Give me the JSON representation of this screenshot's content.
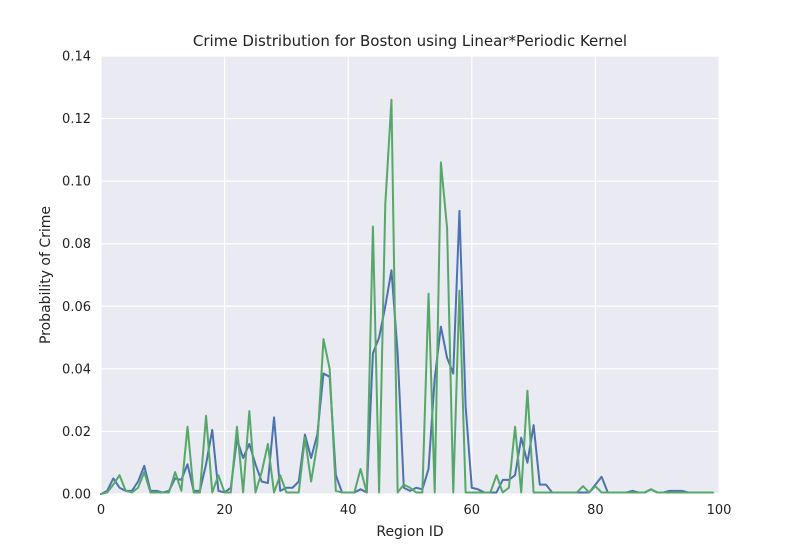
{
  "colors": {
    "plot_background": "#eaeaf2",
    "grid": "#ffffff",
    "series": [
      "#4c72b0",
      "#55a868"
    ]
  },
  "chart_data": {
    "type": "line",
    "title": "Crime Distribution for Boston using Linear*Periodic Kernel",
    "xlabel": "Region ID",
    "ylabel": "Probability of Crime",
    "xlim": [
      0,
      100
    ],
    "ylim": [
      0,
      0.14
    ],
    "xticks": [
      "0",
      "20",
      "40",
      "60",
      "80",
      "100"
    ],
    "yticks": [
      "0.00",
      "0.02",
      "0.04",
      "0.06",
      "0.08",
      "0.10",
      "0.12",
      "0.14"
    ],
    "grid": true,
    "legend": "none",
    "series": [
      {
        "color": "#4c72b0",
        "points": [
          [
            0,
            0.0
          ],
          [
            1,
            0.001
          ],
          [
            2,
            0.005
          ],
          [
            3,
            0.002
          ],
          [
            4,
            0.001
          ],
          [
            5,
            0.001
          ],
          [
            6,
            0.004
          ],
          [
            7,
            0.009
          ],
          [
            8,
            0.001
          ],
          [
            9,
            0.001
          ],
          [
            10,
            0.0005
          ],
          [
            11,
            0.001
          ],
          [
            12,
            0.005
          ],
          [
            13,
            0.0045
          ],
          [
            14,
            0.0095
          ],
          [
            15,
            0.001
          ],
          [
            16,
            0.001
          ],
          [
            17,
            0.0095
          ],
          [
            18,
            0.0205
          ],
          [
            19,
            0.001
          ],
          [
            20,
            0.0005
          ],
          [
            21,
            0.002
          ],
          [
            22,
            0.0175
          ],
          [
            23,
            0.0115
          ],
          [
            24,
            0.016
          ],
          [
            25,
            0.0095
          ],
          [
            26,
            0.004
          ],
          [
            27,
            0.0035
          ],
          [
            28,
            0.0245
          ],
          [
            29,
            0.001
          ],
          [
            30,
            0.002
          ],
          [
            31,
            0.002
          ],
          [
            32,
            0.004
          ],
          [
            33,
            0.019
          ],
          [
            34,
            0.0115
          ],
          [
            35,
            0.019
          ],
          [
            36,
            0.0385
          ],
          [
            37,
            0.0375
          ],
          [
            38,
            0.006
          ],
          [
            39,
            0.0005
          ],
          [
            40,
            0.0005
          ],
          [
            41,
            0.0005
          ],
          [
            42,
            0.0015
          ],
          [
            43,
            0.0005
          ],
          [
            44,
            0.045
          ],
          [
            45,
            0.05
          ],
          [
            46,
            0.06
          ],
          [
            47,
            0.0715
          ],
          [
            48,
            0.045
          ],
          [
            49,
            0.002
          ],
          [
            50,
            0.001
          ],
          [
            51,
            0.002
          ],
          [
            52,
            0.0015
          ],
          [
            53,
            0.008
          ],
          [
            54,
            0.037
          ],
          [
            55,
            0.0535
          ],
          [
            56,
            0.0435
          ],
          [
            57,
            0.0385
          ],
          [
            58,
            0.0905
          ],
          [
            59,
            0.028
          ],
          [
            60,
            0.002
          ],
          [
            61,
            0.0015
          ],
          [
            62,
            0.0005
          ],
          [
            63,
            0.0005
          ],
          [
            64,
            0.0005
          ],
          [
            65,
            0.0045
          ],
          [
            66,
            0.0045
          ],
          [
            67,
            0.006
          ],
          [
            68,
            0.018
          ],
          [
            69,
            0.01
          ],
          [
            70,
            0.022
          ],
          [
            71,
            0.003
          ],
          [
            72,
            0.003
          ],
          [
            73,
            0.0005
          ],
          [
            74,
            0.0005
          ],
          [
            75,
            0.0005
          ],
          [
            76,
            0.0005
          ],
          [
            77,
            0.0005
          ],
          [
            78,
            0.0005
          ],
          [
            79,
            0.0005
          ],
          [
            80,
            0.003
          ],
          [
            81,
            0.0055
          ],
          [
            82,
            0.0005
          ],
          [
            83,
            0.0005
          ],
          [
            84,
            0.0005
          ],
          [
            85,
            0.0005
          ],
          [
            86,
            0.001
          ],
          [
            87,
            0.0005
          ],
          [
            88,
            0.0005
          ],
          [
            89,
            0.0015
          ],
          [
            90,
            0.0005
          ],
          [
            91,
            0.0005
          ],
          [
            92,
            0.001
          ],
          [
            93,
            0.001
          ],
          [
            94,
            0.001
          ],
          [
            95,
            0.0005
          ],
          [
            96,
            0.0005
          ],
          [
            97,
            0.0005
          ],
          [
            98,
            0.0005
          ],
          [
            99,
            0.0005
          ]
        ]
      },
      {
        "color": "#55a868",
        "points": [
          [
            0,
            0.0
          ],
          [
            1,
            0.0005
          ],
          [
            2,
            0.003
          ],
          [
            3,
            0.006
          ],
          [
            4,
            0.001
          ],
          [
            5,
            0.0005
          ],
          [
            6,
            0.002
          ],
          [
            7,
            0.007
          ],
          [
            8,
            0.0005
          ],
          [
            9,
            0.0005
          ],
          [
            10,
            0.0005
          ],
          [
            11,
            0.0005
          ],
          [
            12,
            0.007
          ],
          [
            13,
            0.001
          ],
          [
            14,
            0.0215
          ],
          [
            15,
            0.0005
          ],
          [
            16,
            0.0005
          ],
          [
            17,
            0.025
          ],
          [
            18,
            0.0005
          ],
          [
            19,
            0.006
          ],
          [
            20,
            0.0005
          ],
          [
            21,
            0.0005
          ],
          [
            22,
            0.0215
          ],
          [
            23,
            0.0005
          ],
          [
            24,
            0.0265
          ],
          [
            25,
            0.0005
          ],
          [
            26,
            0.007
          ],
          [
            27,
            0.016
          ],
          [
            28,
            0.0005
          ],
          [
            29,
            0.006
          ],
          [
            30,
            0.0005
          ],
          [
            31,
            0.0005
          ],
          [
            32,
            0.0005
          ],
          [
            33,
            0.018
          ],
          [
            34,
            0.004
          ],
          [
            35,
            0.016
          ],
          [
            36,
            0.0495
          ],
          [
            37,
            0.04
          ],
          [
            38,
            0.001
          ],
          [
            39,
            0.0005
          ],
          [
            40,
            0.0005
          ],
          [
            41,
            0.0005
          ],
          [
            42,
            0.008
          ],
          [
            43,
            0.0005
          ],
          [
            44,
            0.0855
          ],
          [
            45,
            0.0005
          ],
          [
            46,
            0.0925
          ],
          [
            47,
            0.126
          ],
          [
            48,
            0.0005
          ],
          [
            49,
            0.003
          ],
          [
            50,
            0.002
          ],
          [
            51,
            0.0005
          ],
          [
            52,
            0.0005
          ],
          [
            53,
            0.064
          ],
          [
            54,
            0.0005
          ],
          [
            55,
            0.106
          ],
          [
            56,
            0.085
          ],
          [
            57,
            0.0005
          ],
          [
            58,
            0.065
          ],
          [
            59,
            0.0005
          ],
          [
            60,
            0.0005
          ],
          [
            61,
            0.0005
          ],
          [
            62,
            0.0005
          ],
          [
            63,
            0.0005
          ],
          [
            64,
            0.006
          ],
          [
            65,
            0.0005
          ],
          [
            66,
            0.002
          ],
          [
            67,
            0.0215
          ],
          [
            68,
            0.0005
          ],
          [
            69,
            0.033
          ],
          [
            70,
            0.0005
          ],
          [
            71,
            0.0005
          ],
          [
            72,
            0.0005
          ],
          [
            73,
            0.0005
          ],
          [
            74,
            0.0005
          ],
          [
            75,
            0.0005
          ],
          [
            76,
            0.0005
          ],
          [
            77,
            0.0005
          ],
          [
            78,
            0.0025
          ],
          [
            79,
            0.0005
          ],
          [
            80,
            0.0025
          ],
          [
            81,
            0.0005
          ],
          [
            82,
            0.0005
          ],
          [
            83,
            0.0005
          ],
          [
            84,
            0.0005
          ],
          [
            85,
            0.0005
          ],
          [
            86,
            0.0005
          ],
          [
            87,
            0.0005
          ],
          [
            88,
            0.0005
          ],
          [
            89,
            0.0015
          ],
          [
            90,
            0.0005
          ],
          [
            91,
            0.0005
          ],
          [
            92,
            0.0005
          ],
          [
            93,
            0.0005
          ],
          [
            94,
            0.0005
          ],
          [
            95,
            0.0005
          ],
          [
            96,
            0.0005
          ],
          [
            97,
            0.0005
          ],
          [
            98,
            0.0005
          ],
          [
            99,
            0.0005
          ]
        ]
      }
    ]
  }
}
